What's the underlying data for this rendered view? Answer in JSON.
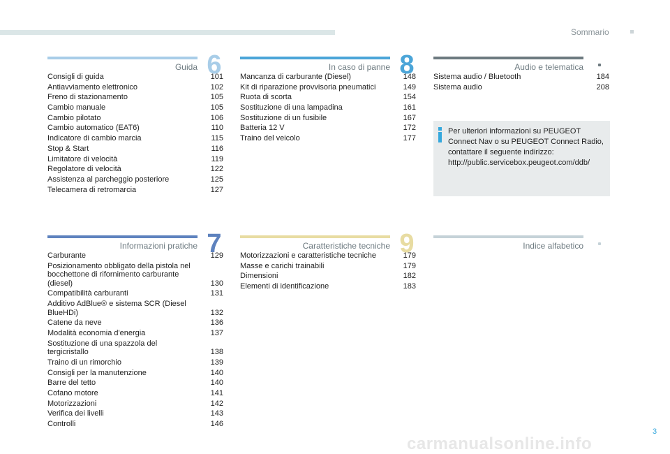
{
  "header": {
    "title": "Sommario",
    "page_number": "3"
  },
  "watermark": "carmanualsonline.info",
  "colors": {
    "accent_blue": "#35a8dd",
    "section6": "#a8cde8",
    "section7": "#5e82be",
    "section8": "#4ba5d8",
    "section9": "#e8dca2",
    "audio": "#6d7a80",
    "index": "#c5d2d8"
  },
  "sections": {
    "s6": {
      "number": "6",
      "title": "Guida",
      "entries": [
        {
          "title": "Consigli di guida",
          "page": "101"
        },
        {
          "title": "Antiavviamento elettronico",
          "page": "102"
        },
        {
          "title": "Freno di stazionamento",
          "page": "105"
        },
        {
          "title": "Cambio manuale",
          "page": "105"
        },
        {
          "title": "Cambio pilotato",
          "page": "106"
        },
        {
          "title": "Cambio automatico (EAT6)",
          "page": "110"
        },
        {
          "title": "Indicatore di cambio marcia",
          "page": "115"
        },
        {
          "title": "Stop & Start",
          "page": "116"
        },
        {
          "title": "Limitatore di velocità",
          "page": "119"
        },
        {
          "title": "Regolatore di velocità",
          "page": "122"
        },
        {
          "title": "Assistenza al parcheggio posteriore",
          "page": "125"
        },
        {
          "title": "Telecamera di retromarcia",
          "page": "127"
        }
      ]
    },
    "s8": {
      "number": "8",
      "title": "In caso di panne",
      "entries": [
        {
          "title": "Mancanza di carburante (Diesel)",
          "page": "148"
        },
        {
          "title": "Kit di riparazione provvisoria pneumatici",
          "page": "149"
        },
        {
          "title": "Ruota di scorta",
          "page": "154"
        },
        {
          "title": "Sostituzione di una lampadina",
          "page": "161"
        },
        {
          "title": "Sostituzione di un fusibile",
          "page": "167"
        },
        {
          "title": "Batteria 12 V",
          "page": "172"
        },
        {
          "title": "Traino del veicolo",
          "page": "177"
        }
      ]
    },
    "audio": {
      "title": "Audio e telematica",
      "entries": [
        {
          "title": "Sistema audio / Bluetooth",
          "page": "184"
        },
        {
          "title": "Sistema audio",
          "page": "208"
        }
      ]
    },
    "s7": {
      "number": "7",
      "title": "Informazioni pratiche",
      "entries": [
        {
          "title": "Carburante",
          "page": "129"
        },
        {
          "title": "Posizionamento obbligato della pistola nel bocchettone di rifornimento carburante (diesel)",
          "page": "130"
        },
        {
          "title": "Compatibilità carburanti",
          "page": "131"
        },
        {
          "title": "Additivo AdBlue® e sistema SCR (Diesel BlueHDi)",
          "page": "132"
        },
        {
          "title": "Catene da neve",
          "page": "136"
        },
        {
          "title": "Modalità economia d'energia",
          "page": "137"
        },
        {
          "title": "Sostituzione di una spazzola del tergicristallo",
          "page": "138"
        },
        {
          "title": "Traino di un rimorchio",
          "page": "139"
        },
        {
          "title": "Consigli per la manutenzione",
          "page": "140"
        },
        {
          "title": "Barre del tetto",
          "page": "140"
        },
        {
          "title": "Cofano motore",
          "page": "141"
        },
        {
          "title": "Motorizzazioni",
          "page": "142"
        },
        {
          "title": "Verifica dei livelli",
          "page": "143"
        },
        {
          "title": "Controlli",
          "page": "146"
        }
      ]
    },
    "s9": {
      "number": "9",
      "title": "Caratteristiche tecniche",
      "entries": [
        {
          "title": "Motorizzazioni e caratteristiche tecniche",
          "page": "179"
        },
        {
          "title": "Masse e carichi trainabili",
          "page": "179"
        },
        {
          "title": "Dimensioni",
          "page": "182"
        },
        {
          "title": "Elementi di identificazione",
          "page": "183"
        }
      ]
    },
    "index": {
      "title": "Indice alfabetico"
    }
  },
  "info_box": {
    "icon": "info-icon",
    "text": "Per ulteriori informazioni su PEUGEOT Connect Nav o su PEUGEOT Connect Radio, contattare il seguente indirizzo: http://public.servicebox.peugeot.com/ddb/"
  }
}
